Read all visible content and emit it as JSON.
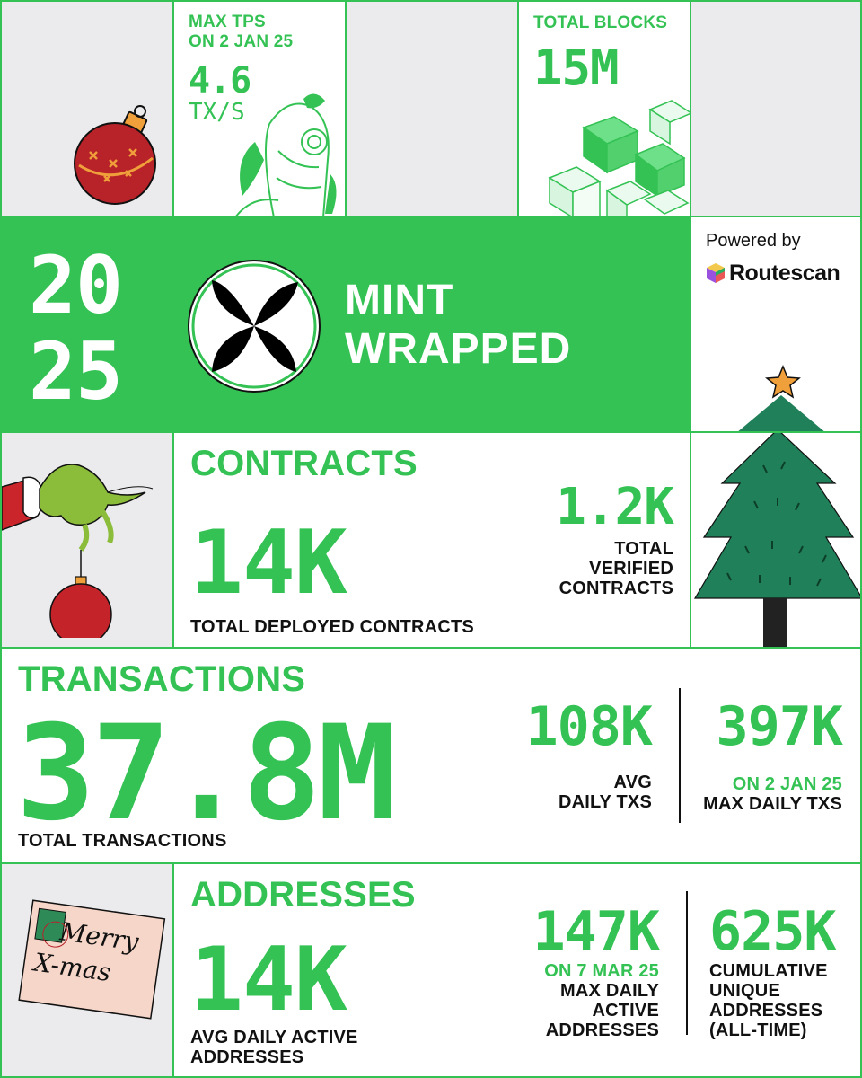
{
  "colors": {
    "accent": "#34c254",
    "grey_panel": "#ebebed",
    "text": "#111111",
    "white": "#ffffff"
  },
  "max_tps": {
    "label_line1": "MAX TPS",
    "label_line2": "ON 2 JAN 25",
    "value": "4.6",
    "unit": "TX/S"
  },
  "total_blocks": {
    "label": "TOTAL BLOCKS",
    "value": "15M"
  },
  "year": {
    "line1": "20",
    "line2": "25"
  },
  "brand": {
    "line1": "MINT",
    "line2": "WRAPPED",
    "logo_icon": "mint-x-logo"
  },
  "powered": {
    "label": "Powered by",
    "name": "Routescan",
    "icon": "routescan-cube-icon"
  },
  "contracts": {
    "heading": "CONTRACTS",
    "total_value": "14K",
    "total_label": "TOTAL DEPLOYED CONTRACTS",
    "verified_value": "1.2K",
    "verified_label1": "TOTAL",
    "verified_label2": "VERIFIED",
    "verified_label3": "CONTRACTS"
  },
  "transactions": {
    "heading": "TRANSACTIONS",
    "total_value": "37.8M",
    "total_label": "TOTAL TRANSACTIONS",
    "avg_value": "108K",
    "avg_label1": "AVG",
    "avg_label2": "DAILY TXS",
    "max_value": "397K",
    "max_date": "ON 2 JAN 25",
    "max_label": "MAX DAILY TXS"
  },
  "addresses": {
    "heading": "ADDRESSES",
    "avg_value": "14K",
    "avg_label1": "AVG DAILY ACTIVE",
    "avg_label2": "ADDRESSES",
    "max_value": "147K",
    "max_date": "ON 7 MAR 25",
    "max_label1": "MAX DAILY",
    "max_label2": "ACTIVE",
    "max_label3": "ADDRESSES",
    "cum_value": "625K",
    "cum_label1": "CUMULATIVE",
    "cum_label2": "UNIQUE",
    "cum_label3": "ADDRESSES",
    "cum_label4": "(ALL-TIME)"
  },
  "card": {
    "line1": "Merry",
    "line2": "X-mas"
  }
}
